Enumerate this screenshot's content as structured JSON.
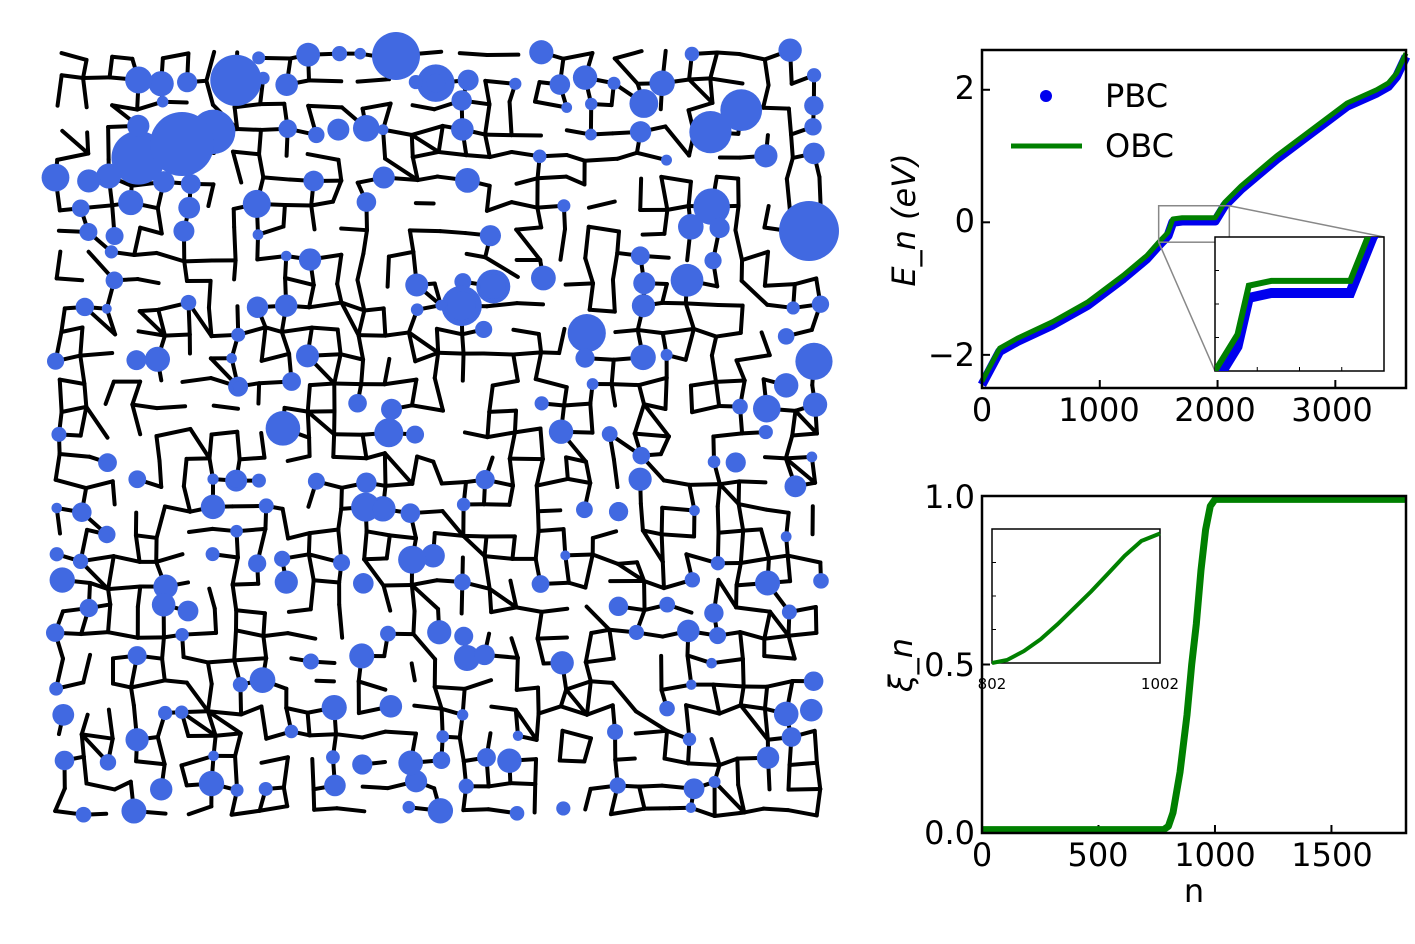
{
  "chart_data": [
    {
      "type": "network",
      "description_visible": "random lattice network of black bonds with blue circles (sizes vary) on nodes",
      "colors": {
        "bonds": "#000000",
        "nodes": "#4169e1"
      }
    },
    {
      "type": "line",
      "ylabel": "E_n (eV)",
      "xlabel": "",
      "xlim": [
        0,
        3600
      ],
      "ylim": [
        -2.5,
        2.6
      ],
      "xticks": [
        0,
        1000,
        2000,
        3000
      ],
      "xtick_labels": [
        "0",
        "1000",
        "2000",
        "3000"
      ],
      "yticks": [
        -2,
        0,
        2
      ],
      "ytick_labels": [
        "−2",
        "0",
        "2"
      ],
      "legend": [
        {
          "name": "PBC",
          "marker": "dot",
          "color": "#0000ee"
        },
        {
          "name": "OBC",
          "marker": "line",
          "color": "#008000"
        }
      ],
      "legend_position": "top-left",
      "series": [
        {
          "name": "PBC",
          "color": "#0000ee",
          "x": [
            0,
            150,
            300,
            600,
            900,
            1200,
            1400,
            1500,
            1580,
            1620,
            1700,
            1900,
            1980,
            2060,
            2200,
            2500,
            2800,
            3100,
            3350,
            3450,
            3520,
            3600
          ],
          "y": [
            -2.45,
            -1.95,
            -1.8,
            -1.55,
            -1.25,
            -0.85,
            -0.55,
            -0.35,
            -0.2,
            0.0,
            0.02,
            0.02,
            0.02,
            0.25,
            0.5,
            0.95,
            1.35,
            1.75,
            1.95,
            2.05,
            2.2,
            2.5
          ]
        },
        {
          "name": "OBC",
          "color": "#008000",
          "x": [
            0,
            150,
            300,
            600,
            900,
            1200,
            1400,
            1500,
            1580,
            1620,
            1700,
            1900,
            1980,
            2060,
            2200,
            2500,
            2800,
            3100,
            3350,
            3450,
            3520,
            3600
          ],
          "y": [
            -2.4,
            -1.9,
            -1.75,
            -1.5,
            -1.2,
            -0.8,
            -0.5,
            -0.3,
            -0.15,
            0.05,
            0.07,
            0.07,
            0.07,
            0.3,
            0.55,
            1.0,
            1.4,
            1.8,
            2.0,
            2.1,
            2.25,
            2.55
          ]
        }
      ],
      "inset": {
        "zoom_region_x": [
          1500,
          2100
        ],
        "zoom_region_y": [
          -0.3,
          0.25
        ]
      }
    },
    {
      "type": "line",
      "ylabel": "ξ_n",
      "xlabel": "n",
      "xlim": [
        0,
        1820
      ],
      "ylim": [
        0.0,
        1.0
      ],
      "xticks": [
        0,
        500,
        1000,
        1500
      ],
      "xtick_labels": [
        "0",
        "500",
        "1000",
        "1500"
      ],
      "yticks": [
        0.0,
        0.5,
        1.0
      ],
      "ytick_labels": [
        "0.0",
        "0.5",
        "1.0"
      ],
      "series": [
        {
          "color": "#008000",
          "x": [
            0,
            780,
            800,
            820,
            850,
            880,
            900,
            920,
            940,
            960,
            980,
            1000,
            1020,
            1820
          ],
          "y": [
            0.01,
            0.01,
            0.02,
            0.06,
            0.18,
            0.35,
            0.5,
            0.62,
            0.78,
            0.9,
            0.97,
            0.99,
            0.99,
            0.99
          ]
        }
      ],
      "inset": {
        "xlim": [
          802,
          1002
        ],
        "xtick_labels": [
          "802",
          "1002"
        ],
        "series": [
          {
            "color": "#008000",
            "x": [
              802,
              820,
              840,
              860,
              880,
              900,
              920,
              940,
              960,
              980,
              1002
            ],
            "y": [
              0.0,
              0.02,
              0.08,
              0.16,
              0.26,
              0.37,
              0.48,
              0.6,
              0.72,
              0.82,
              0.87
            ]
          }
        ]
      }
    }
  ]
}
